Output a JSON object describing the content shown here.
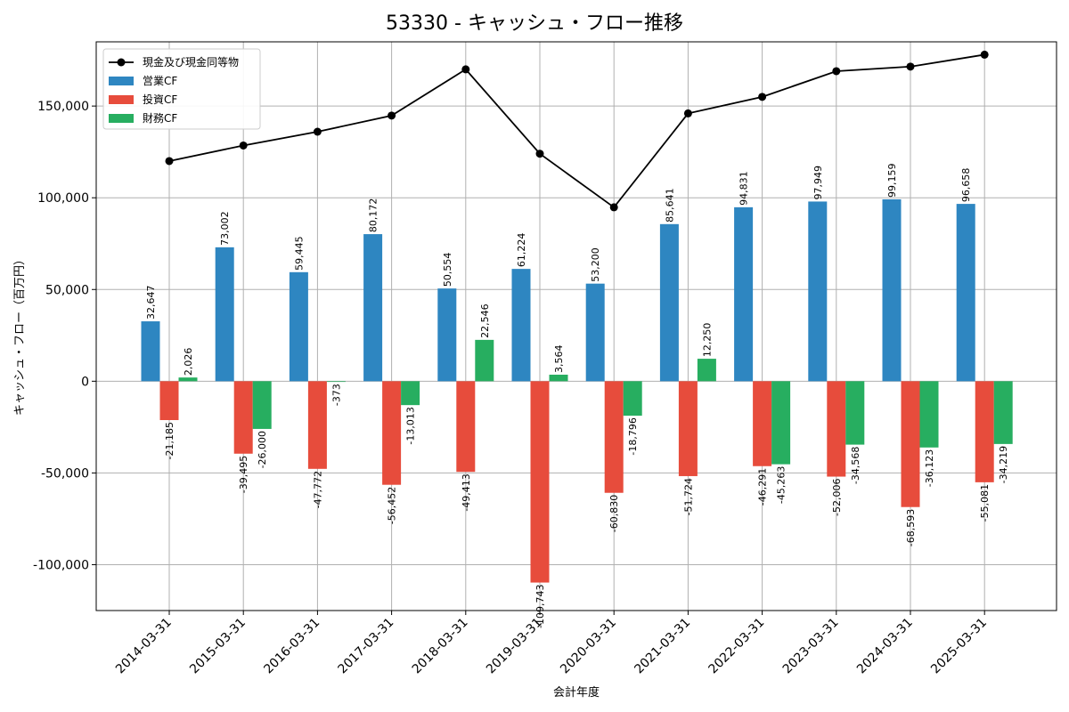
{
  "chart_data": {
    "type": "bar",
    "title": "53330 - キャッシュ・フロー推移",
    "xlabel": "会計年度",
    "ylabel": "キャッシュ・フロー（百万円）",
    "categories": [
      "2014-03-31",
      "2015-03-31",
      "2016-03-31",
      "2017-03-31",
      "2018-03-31",
      "2019-03-31",
      "2020-03-31",
      "2021-03-31",
      "2022-03-31",
      "2023-03-31",
      "2024-03-31",
      "2025-03-31"
    ],
    "ylim": [
      -125000,
      185000
    ],
    "yticks": [
      -100000,
      -50000,
      0,
      50000,
      100000,
      150000
    ],
    "ytick_labels": [
      "-100,000",
      "-50,000",
      "0",
      "50,000",
      "100,000",
      "150,000"
    ],
    "grid": true,
    "legend_position": "top-left",
    "series": [
      {
        "name": "営業CF",
        "kind": "bar",
        "color": "#2e86c1",
        "values": [
          32647,
          73002,
          59445,
          80172,
          50554,
          61224,
          53200,
          85641,
          94831,
          97949,
          99159,
          96658
        ],
        "labels": [
          "32,647",
          "73,002",
          "59,445",
          "80,172",
          "50,554",
          "61,224",
          "53,200",
          "85,641",
          "94,831",
          "97,949",
          "99,159",
          "96,658"
        ]
      },
      {
        "name": "投資CF",
        "kind": "bar",
        "color": "#e74c3c",
        "values": [
          -21185,
          -39495,
          -47772,
          -56452,
          -49413,
          -109743,
          -60830,
          -51724,
          -46291,
          -52006,
          -68593,
          -55081
        ],
        "labels": [
          "-21,185",
          "-39,495",
          "-47,772",
          "-56,452",
          "-49,413",
          "-109,743",
          "-60,830",
          "-51,724",
          "-46,291",
          "-52,006",
          "-68,593",
          "-55,081"
        ]
      },
      {
        "name": "財務CF",
        "kind": "bar",
        "color": "#27ae60",
        "values": [
          2026,
          -26000,
          -373,
          -13013,
          22546,
          3564,
          -18796,
          12250,
          -45263,
          -34568,
          -36123,
          -34219
        ],
        "labels": [
          "2,026",
          "-26,000",
          "-373",
          "-13,013",
          "22,546",
          "3,564",
          "-18,796",
          "12,250",
          "-45,263",
          "-34,568",
          "-36,123",
          "-34,219"
        ]
      },
      {
        "name": "現金及び現金同等物",
        "kind": "line",
        "color": "#000000",
        "values": [
          120000,
          128500,
          136000,
          144800,
          170000,
          124000,
          94800,
          146000,
          155000,
          169000,
          171500,
          178000
        ]
      }
    ]
  }
}
